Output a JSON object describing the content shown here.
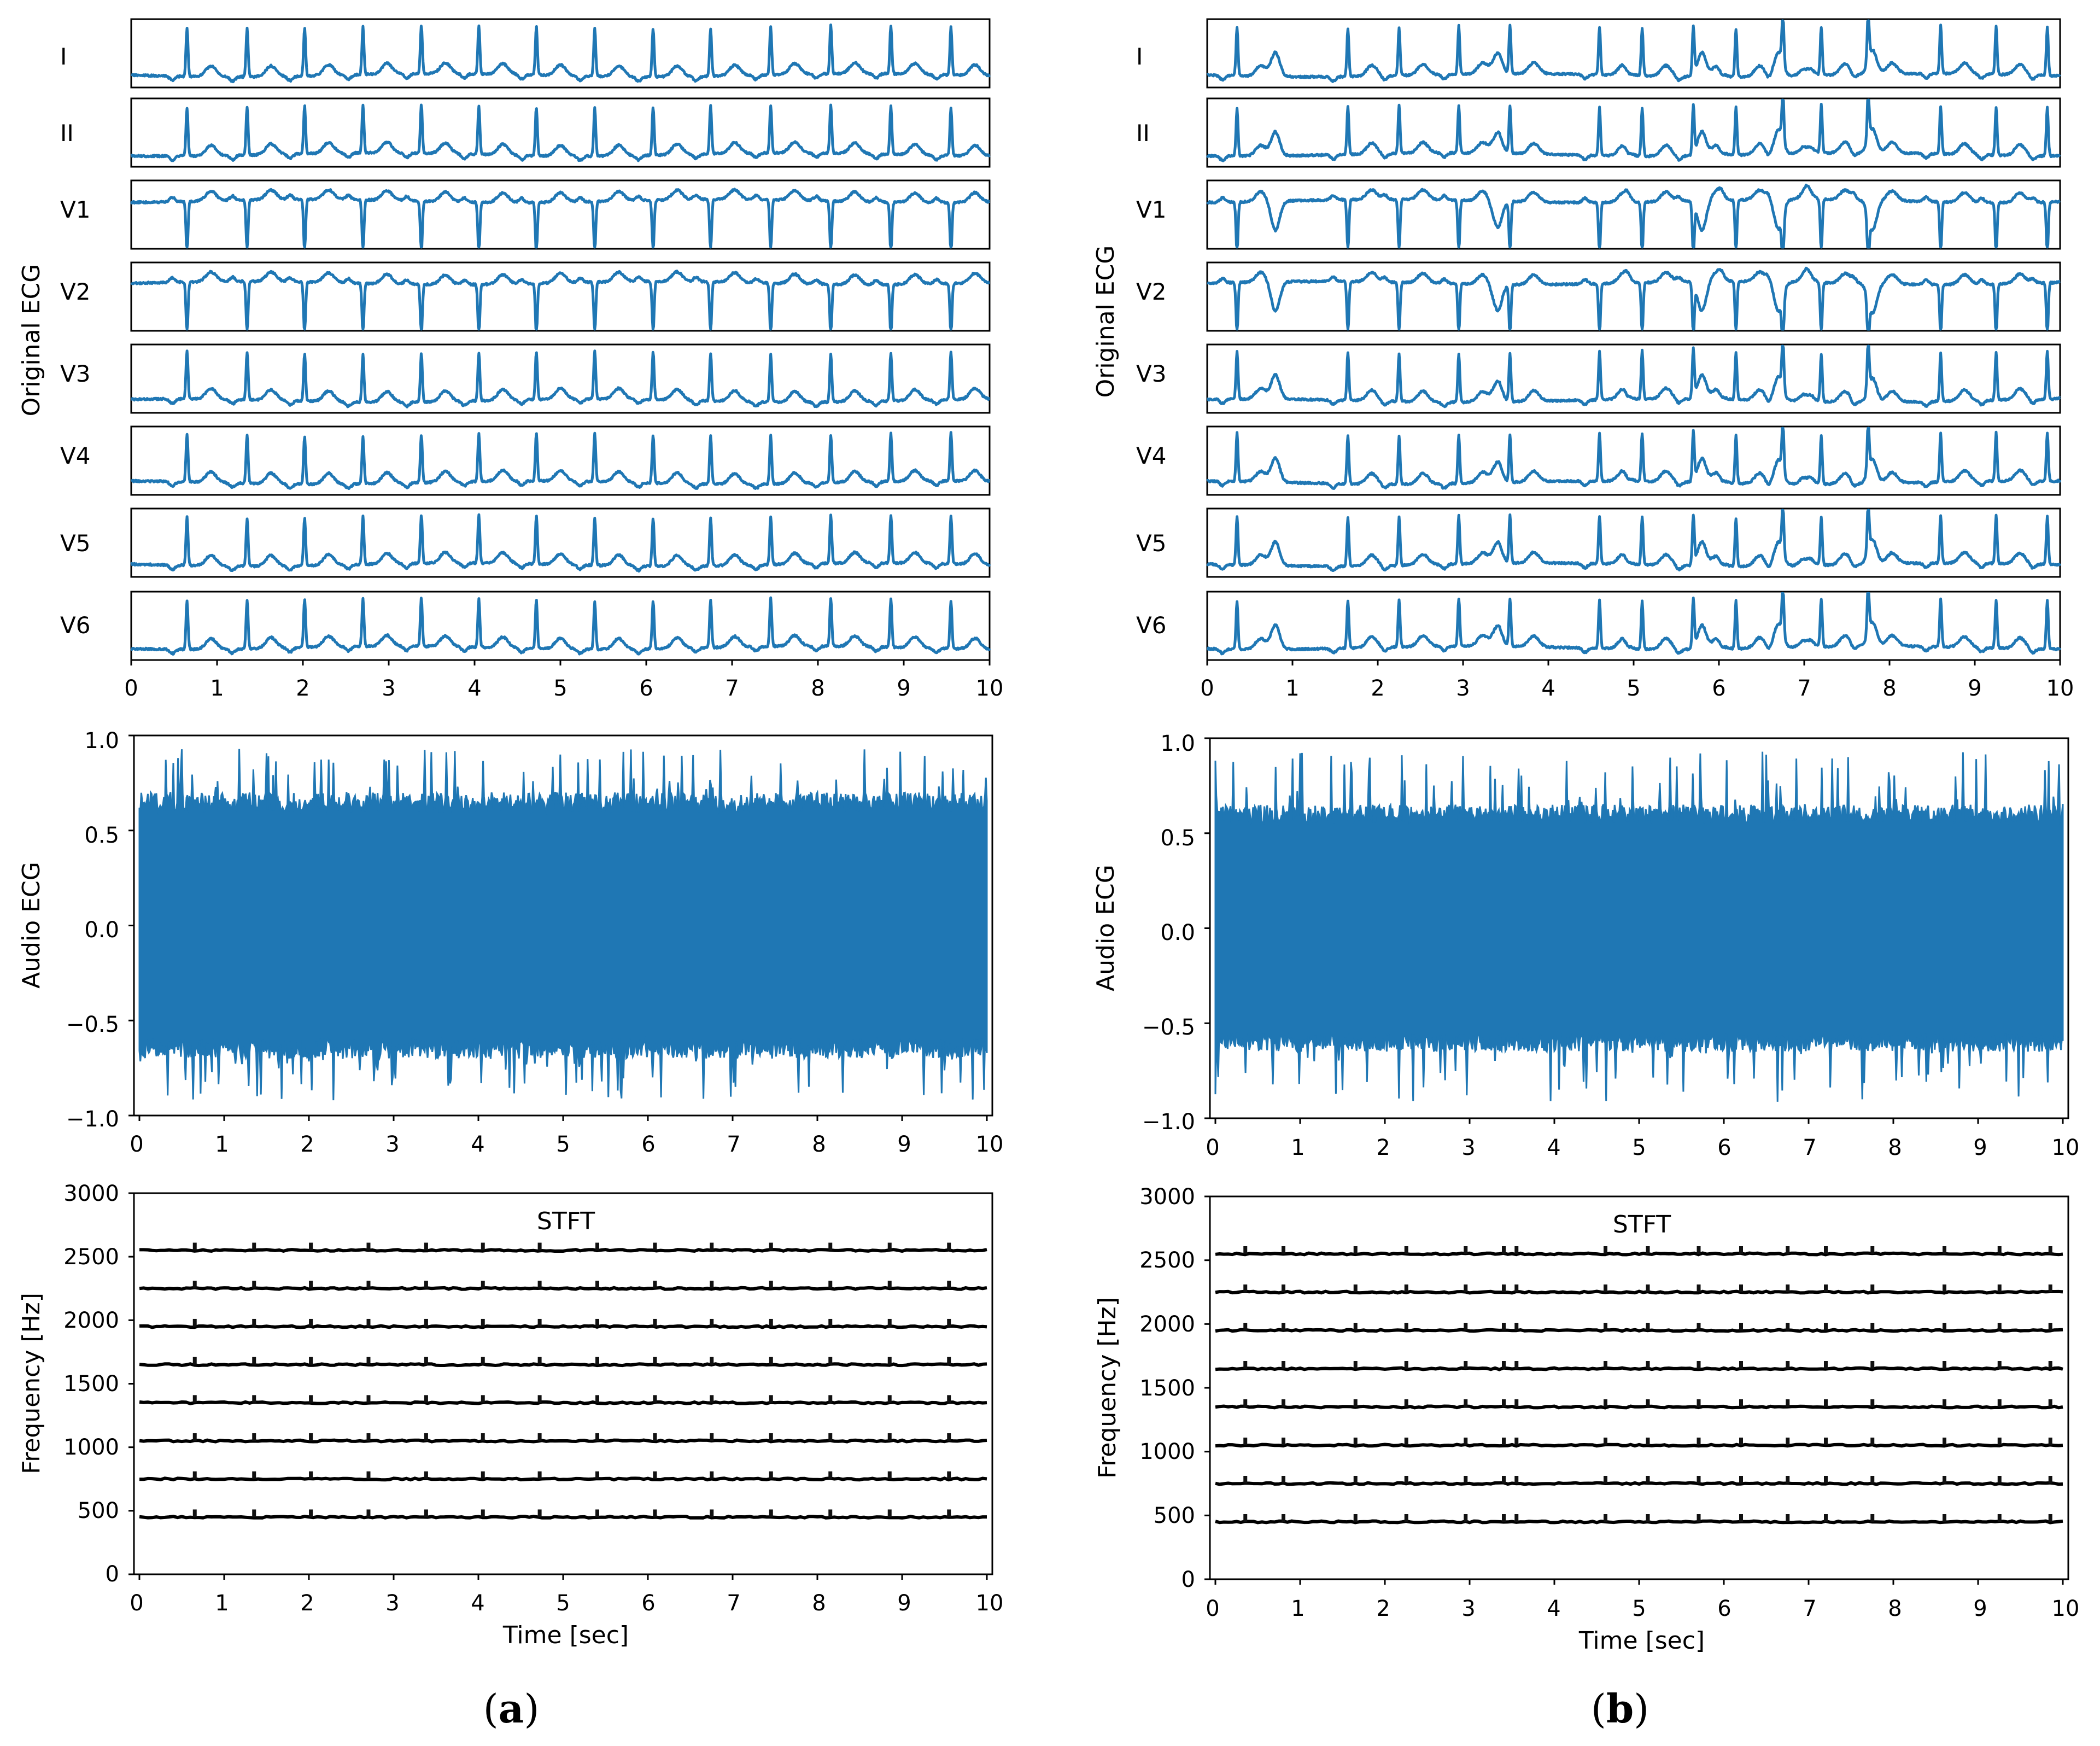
{
  "colors": {
    "signal": "#1f77b4",
    "stft_trace": "#000000",
    "axes": "#000000",
    "background": "#ffffff"
  },
  "panels": [
    {
      "caption": {
        "open": "(",
        "letter": "a",
        "close": ")"
      },
      "ecg": {
        "ylabel": "Original ECG",
        "leads": [
          "I",
          "II",
          "V1",
          "V2",
          "V3",
          "V4",
          "V5",
          "V6"
        ],
        "x_ticks": [
          "0",
          "1",
          "2",
          "3",
          "4",
          "5",
          "6",
          "7",
          "8",
          "9",
          "10"
        ]
      },
      "audio": {
        "ylabel": "Audio ECG",
        "x_ticks": [
          "0",
          "1",
          "2",
          "3",
          "4",
          "5",
          "6",
          "7",
          "8",
          "9",
          "10"
        ],
        "y_ticks": [
          "1.0",
          "0.5",
          "0.0",
          "−0.5",
          "−1.0"
        ]
      },
      "stft": {
        "title": "STFT",
        "ylabel": "Frequency [Hz]",
        "xlabel": "Time [sec]",
        "x_ticks": [
          "0",
          "1",
          "2",
          "3",
          "4",
          "5",
          "6",
          "7",
          "8",
          "9",
          "10"
        ],
        "y_ticks": [
          "3000",
          "2500",
          "2000",
          "1500",
          "1000",
          "500",
          "0"
        ]
      }
    },
    {
      "caption": {
        "open": "(",
        "letter": "b",
        "close": ")"
      },
      "ecg": {
        "ylabel": "Original ECG",
        "leads": [
          "I",
          "II",
          "V1",
          "V2",
          "V3",
          "V4",
          "V5",
          "V6"
        ],
        "x_ticks": [
          "0",
          "1",
          "2",
          "3",
          "4",
          "5",
          "6",
          "7",
          "8",
          "9",
          "10"
        ]
      },
      "audio": {
        "ylabel": "Audio ECG",
        "x_ticks": [
          "0",
          "1",
          "2",
          "3",
          "4",
          "5",
          "6",
          "7",
          "8",
          "9",
          "10"
        ],
        "y_ticks": [
          "1.0",
          "0.5",
          "0.0",
          "−0.5",
          "−1.0"
        ]
      },
      "stft": {
        "title": "STFT",
        "ylabel": "Frequency [Hz]",
        "xlabel": "Time [sec]",
        "x_ticks": [
          "0",
          "1",
          "2",
          "3",
          "4",
          "5",
          "6",
          "7",
          "8",
          "9",
          "10"
        ],
        "y_ticks": [
          "3000",
          "2500",
          "2000",
          "1500",
          "1000",
          "500",
          "0"
        ]
      }
    }
  ],
  "chart_data": [
    {
      "id": "a-ecg",
      "type": "line",
      "title": "",
      "ylabel": "Original ECG",
      "xlabel": "",
      "xlim": [
        0,
        10
      ],
      "series_names": [
        "I",
        "II",
        "V1",
        "V2",
        "V3",
        "V4",
        "V5",
        "V6"
      ],
      "beats_sec": [
        0.65,
        1.35,
        2.02,
        2.7,
        3.38,
        4.05,
        4.72,
        5.4,
        6.08,
        6.75,
        7.45,
        8.15,
        8.85,
        9.55
      ],
      "extra_beats_sec": [],
      "v1_v2_polarity": "negative QRS"
    },
    {
      "id": "a-audio",
      "type": "area",
      "title": "",
      "ylabel": "Audio ECG",
      "xlim": [
        0,
        10
      ],
      "ylim": [
        -1.0,
        1.0
      ],
      "x_ticks": [
        0,
        1,
        2,
        3,
        4,
        5,
        6,
        7,
        8,
        9,
        10
      ],
      "y_ticks": [
        1.0,
        0.5,
        0.0,
        -0.5,
        -1.0
      ],
      "typical_envelope": 0.7,
      "peak_max": 0.93,
      "peak_min": -0.92
    },
    {
      "id": "a-stft",
      "type": "line",
      "title": "STFT",
      "xlabel": "Time [sec]",
      "ylabel": "Frequency [Hz]",
      "xlim": [
        0,
        10
      ],
      "ylim": [
        0,
        3000
      ],
      "x_ticks": [
        0,
        1,
        2,
        3,
        4,
        5,
        6,
        7,
        8,
        9,
        10
      ],
      "y_ticks": [
        0,
        500,
        1000,
        1500,
        2000,
        2500,
        3000
      ],
      "carrier_frequencies_hz": [
        450,
        750,
        1050,
        1350,
        1650,
        1950,
        2250,
        2550
      ],
      "beat_marks_sec": [
        0.65,
        1.35,
        2.02,
        2.7,
        3.38,
        4.05,
        4.72,
        5.4,
        6.08,
        6.75,
        7.45,
        8.15,
        8.85,
        9.55
      ]
    },
    {
      "id": "b-ecg",
      "type": "line",
      "title": "",
      "ylabel": "Original ECG",
      "xlabel": "",
      "xlim": [
        0,
        10
      ],
      "series_names": [
        "I",
        "II",
        "V1",
        "V2",
        "V3",
        "V4",
        "V5",
        "V6"
      ],
      "beats_sec": [
        0.35,
        1.65,
        2.25,
        2.95,
        3.55,
        4.6,
        5.1,
        5.7,
        6.2,
        6.75,
        7.2,
        7.75,
        8.6,
        9.25,
        9.85
      ],
      "extra_beats_sec": [
        0.8,
        3.4,
        5.8,
        6.7,
        7.8
      ],
      "v1_v2_polarity": "mixed"
    },
    {
      "id": "b-audio",
      "type": "area",
      "title": "",
      "ylabel": "Audio ECG",
      "xlim": [
        0,
        10
      ],
      "ylim": [
        -1.0,
        1.0
      ],
      "x_ticks": [
        0,
        1,
        2,
        3,
        4,
        5,
        6,
        7,
        8,
        9,
        10
      ],
      "y_ticks": [
        1.0,
        0.5,
        0.0,
        -0.5,
        -1.0
      ],
      "typical_envelope": 0.65,
      "peak_max": 0.93,
      "peak_min": -0.92
    },
    {
      "id": "b-stft",
      "type": "line",
      "title": "STFT",
      "xlabel": "Time [sec]",
      "ylabel": "Frequency [Hz]",
      "xlim": [
        0,
        10
      ],
      "ylim": [
        0,
        3000
      ],
      "x_ticks": [
        0,
        1,
        2,
        3,
        4,
        5,
        6,
        7,
        8,
        9,
        10
      ],
      "y_ticks": [
        0,
        500,
        1000,
        1500,
        2000,
        2500,
        3000
      ],
      "carrier_frequencies_hz": [
        450,
        750,
        1050,
        1350,
        1650,
        1950,
        2250,
        2550
      ],
      "beat_marks_sec": [
        0.35,
        0.8,
        1.65,
        2.25,
        2.95,
        3.4,
        3.55,
        4.6,
        5.1,
        5.7,
        6.2,
        6.75,
        7.2,
        7.75,
        8.6,
        9.25,
        9.85
      ]
    }
  ]
}
